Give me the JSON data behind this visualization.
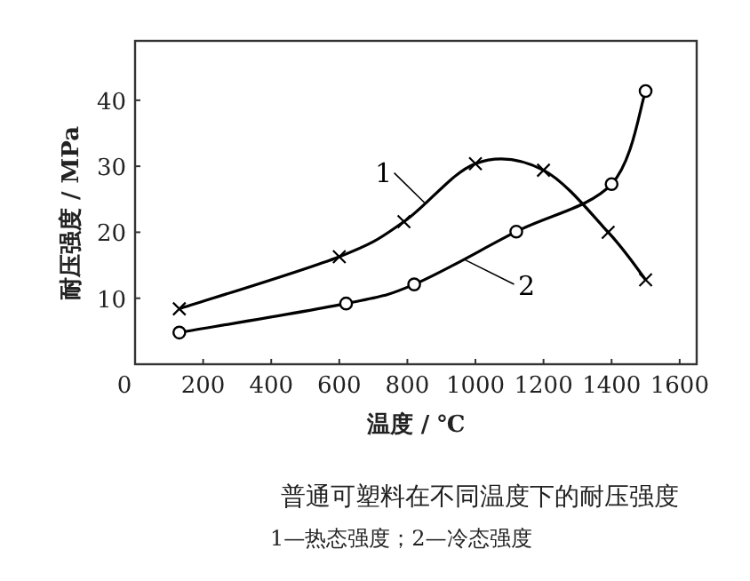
{
  "chart_data": {
    "type": "line",
    "title": "普通可塑料在不同温度下的耐压强度",
    "xlabel": "温度 / ℃",
    "ylabel": "耐压强度 / MPa",
    "annotations": [
      "1—热态强度；2—冷态强度"
    ],
    "xlim": [
      0,
      1650
    ],
    "ylim": [
      0,
      49
    ],
    "xticks": [
      0,
      200,
      400,
      600,
      800,
      1000,
      1200,
      1400,
      1600
    ],
    "yticks": [
      10,
      20,
      30,
      40
    ],
    "grid": false,
    "series": [
      {
        "name": "1",
        "color": "#000000",
        "marker": "cross",
        "x": [
          130,
          600,
          790,
          1000,
          1200,
          1390,
          1500
        ],
        "values": [
          8.4,
          16.3,
          21.6,
          30.4,
          29.4,
          20,
          12.8
        ]
      },
      {
        "name": "2",
        "color": "#000000",
        "marker": "circle",
        "x": [
          130,
          620,
          820,
          1120,
          1400,
          1500
        ],
        "values": [
          4.8,
          9.2,
          12.1,
          20.1,
          27.3,
          41.4
        ]
      }
    ]
  }
}
